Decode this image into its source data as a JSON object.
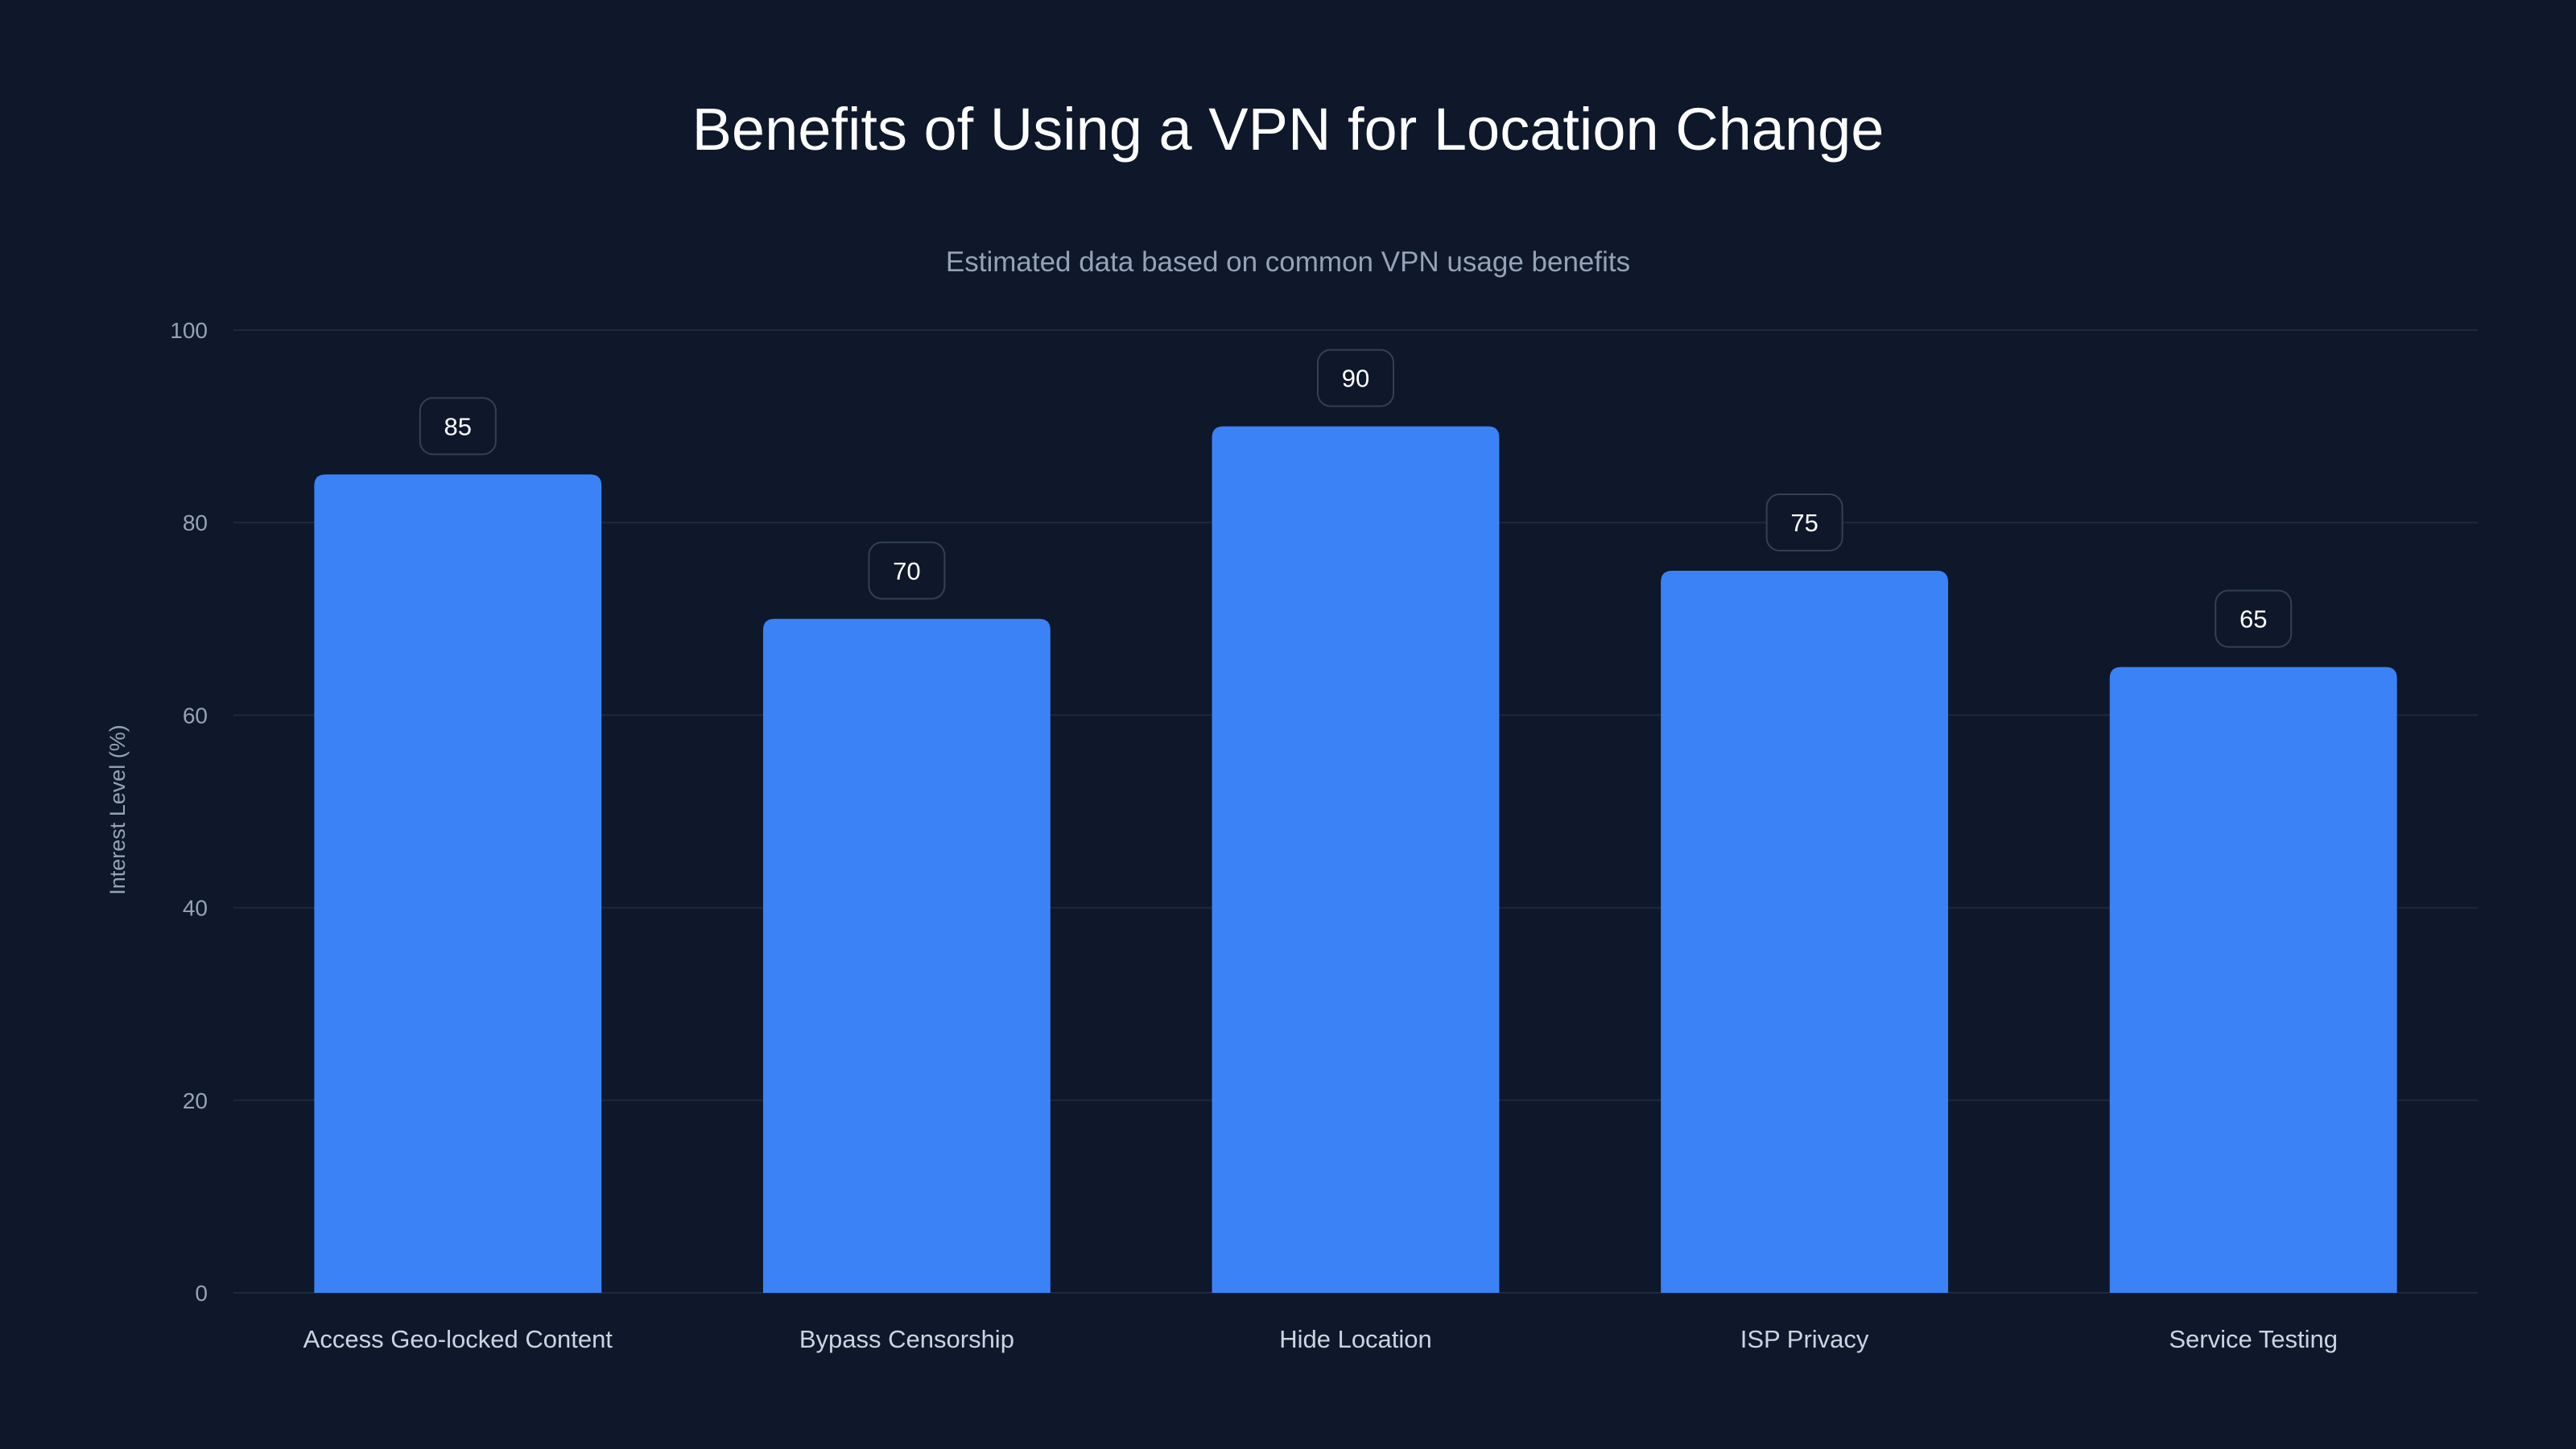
{
  "chart_data": {
    "type": "bar",
    "title": "Benefits of Using a VPN for Location Change",
    "subtitle": "Estimated data based on common VPN usage benefits",
    "xlabel": "",
    "ylabel": "Interest Level (%)",
    "categories": [
      "Access Geo-locked Content",
      "Bypass Censorship",
      "Hide Location",
      "ISP Privacy",
      "Service Testing"
    ],
    "values": [
      85,
      70,
      90,
      75,
      65
    ],
    "ylim": [
      0,
      100
    ],
    "yticks": [
      0,
      20,
      40,
      60,
      80,
      100
    ],
    "grid": true,
    "data_labels": true,
    "colors": {
      "background": "#0f172a",
      "bar": "#3b82f6",
      "grid": "#1e293b",
      "label_border": "#334155"
    }
  }
}
